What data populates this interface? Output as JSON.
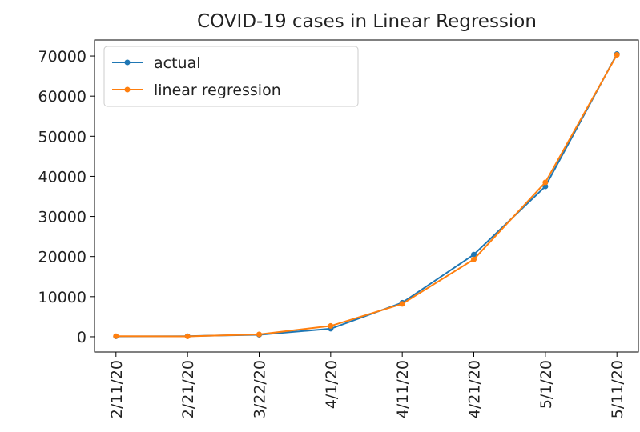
{
  "chart_data": {
    "type": "line",
    "title": "COVID-19 cases in Linear Regression",
    "categories": [
      "2/11/20",
      "2/21/20",
      "3/22/20",
      "4/1/20",
      "4/11/20",
      "4/21/20",
      "5/1/20",
      "5/11/20"
    ],
    "series": [
      {
        "name": "actual",
        "color": "#1f77b4",
        "values": [
          100,
          150,
          500,
          2000,
          8500,
          20500,
          37500,
          70500
        ]
      },
      {
        "name": "linear regression",
        "color": "#ff7f0e",
        "values": [
          150,
          100,
          600,
          2700,
          8200,
          19300,
          38500,
          70300
        ]
      }
    ],
    "ylim": [
      -3800,
      74000
    ],
    "yticks": [
      0,
      10000,
      20000,
      30000,
      40000,
      50000,
      60000,
      70000
    ],
    "legend": "upper left"
  }
}
